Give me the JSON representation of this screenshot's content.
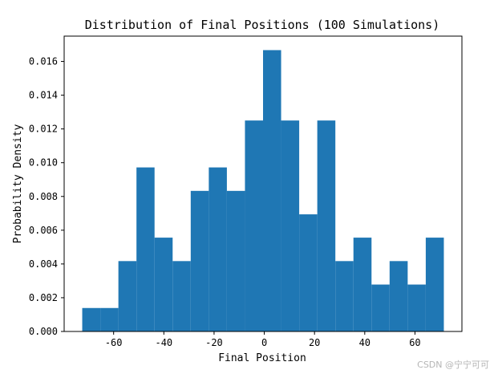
{
  "chart_data": {
    "type": "bar",
    "title": "Distribution of Final Positions (100 Simulations)",
    "xlabel": "Final Position",
    "ylabel": "Probability Density",
    "bin_edges": [
      -72.5,
      -65.3,
      -58.1,
      -50.9,
      -43.7,
      -36.5,
      -29.3,
      -22.1,
      -14.9,
      -7.7,
      -0.5,
      6.7,
      13.9,
      21.1,
      28.3,
      35.5,
      42.7,
      49.9,
      57.1,
      64.3,
      71.5
    ],
    "values": [
      0.00139,
      0.00139,
      0.00417,
      0.00972,
      0.00556,
      0.00417,
      0.00833,
      0.00972,
      0.00833,
      0.0125,
      0.01667,
      0.0125,
      0.00694,
      0.0125,
      0.00417,
      0.00556,
      0.00278,
      0.00417,
      0.00278,
      0.00556
    ],
    "bar_color": "#1f77b4",
    "xlim": [
      -79.7,
      78.7
    ],
    "ylim": [
      0,
      0.0175
    ],
    "xticks": [
      -60,
      -40,
      -20,
      0,
      20,
      40,
      60
    ],
    "xtick_labels": [
      "-60",
      "-40",
      "-20",
      "0",
      "20",
      "40",
      "60"
    ],
    "yticks": [
      0,
      0.002,
      0.004,
      0.006,
      0.008,
      0.01,
      0.012,
      0.014,
      0.016
    ],
    "ytick_labels": [
      "0.000",
      "0.002",
      "0.004",
      "0.006",
      "0.008",
      "0.010",
      "0.012",
      "0.014",
      "0.016"
    ],
    "grid": false,
    "legend": "none"
  },
  "watermark": "CSDN @宁宁可可"
}
